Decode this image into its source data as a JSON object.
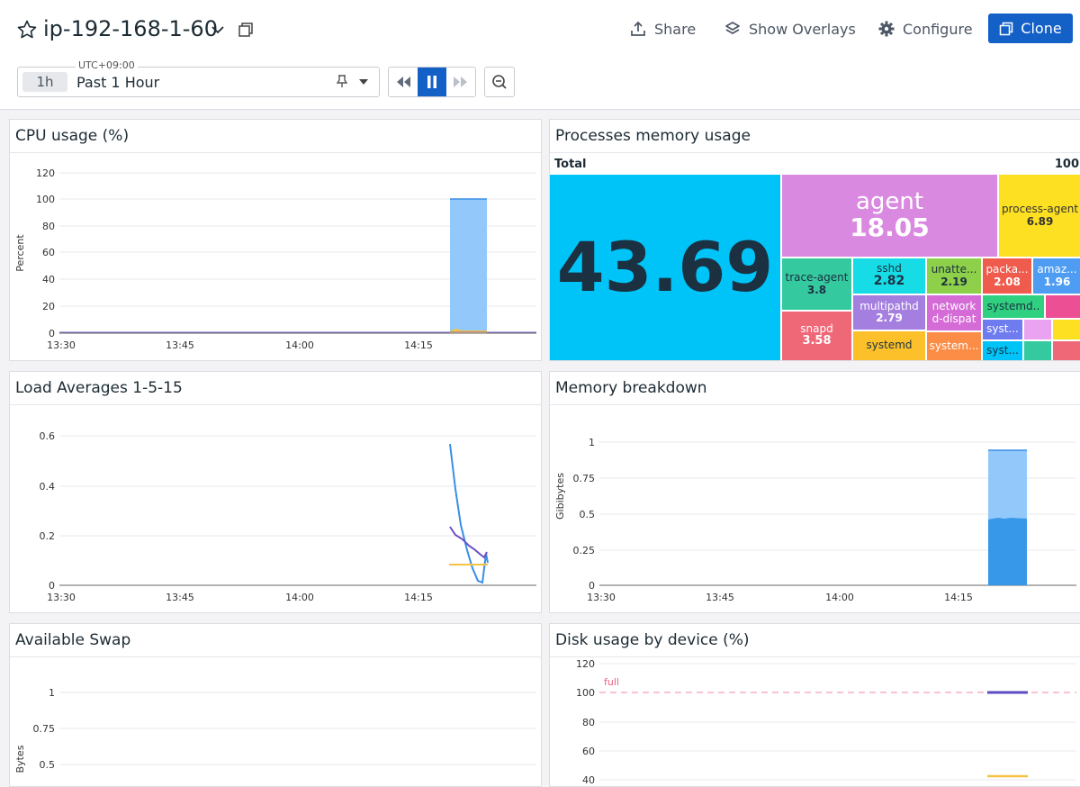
{
  "header": {
    "host": "ip-192-168-1-60",
    "share_label": "Share",
    "overlays_label": "Show Overlays",
    "configure_label": "Configure",
    "clone_label": "Clone"
  },
  "timeframe": {
    "timezone": "UTC+09:00",
    "short": "1h",
    "label": "Past 1 Hour"
  },
  "time_axis": [
    "13:30",
    "13:45",
    "14:00",
    "14:15"
  ],
  "cpu": {
    "title": "CPU usage (%)",
    "ylabel": "Percent",
    "yticks": [
      "120",
      "100",
      "80",
      "60",
      "40",
      "20",
      "0"
    ]
  },
  "load": {
    "title": "Load Averages 1-5-15",
    "yticks": [
      "0.6",
      "0.4",
      "0.2",
      "0"
    ]
  },
  "memory": {
    "title": "Memory breakdown",
    "ylabel": "Gibibytes",
    "yticks": [
      "1",
      "0.75",
      "0.5",
      "0.25",
      "0"
    ]
  },
  "swap": {
    "title": "Available Swap",
    "ylabel": "Bytes",
    "yticks": [
      "1",
      "0.75",
      "0.5"
    ]
  },
  "disk": {
    "title": "Disk usage by device (%)",
    "marker": "full",
    "yticks": [
      "120",
      "100",
      "80",
      "60",
      "40"
    ]
  },
  "processes": {
    "title": "Processes memory usage",
    "total_label": "Total",
    "total_value": "100",
    "big_value": "43.69",
    "items": [
      {
        "name": "agent",
        "value": "18.05"
      },
      {
        "name": "process-agent",
        "value": "6.89"
      },
      {
        "name": "trace-agent",
        "value": "3.8"
      },
      {
        "name": "sshd",
        "value": "2.82"
      },
      {
        "name": "unatte...",
        "value": "2.19"
      },
      {
        "name": "packa...",
        "value": "2.08"
      },
      {
        "name": "amaz...",
        "value": "1.96"
      },
      {
        "name": "multipathd",
        "value": "2.79"
      },
      {
        "name": "network d-dispat",
        "value": ""
      },
      {
        "name": "systemd..",
        "value": ""
      },
      {
        "name": "snapd",
        "value": "3.58"
      },
      {
        "name": "systemd",
        "value": ""
      },
      {
        "name": "system...",
        "value": ""
      },
      {
        "name": "syst...",
        "value": ""
      },
      {
        "name": "syst...",
        "value": ""
      }
    ]
  },
  "chart_data": [
    {
      "type": "area",
      "title": "CPU usage (%)",
      "ylabel": "Percent",
      "ylim": [
        0,
        120
      ],
      "series": [
        {
          "values": [
            100,
            100
          ]
        },
        {
          "values": [
            2,
            2
          ]
        }
      ]
    },
    {
      "type": "line",
      "title": "Load Averages 1-5-15",
      "ylim": [
        0,
        0.6
      ],
      "series": [
        {
          "values": [
            0.56,
            0.38,
            0.2,
            0.1,
            0.05,
            0.02,
            0.01,
            0.13
          ]
        },
        {
          "values": [
            0.24,
            0.2,
            0.18,
            0.16,
            0.14,
            0.12,
            0.12,
            0.12
          ]
        },
        {
          "values": [
            0.08,
            0.08,
            0.08,
            0.08,
            0.08
          ]
        }
      ]
    },
    {
      "type": "bar",
      "title": "Memory breakdown",
      "ylabel": "Gibibytes",
      "ylim": [
        0,
        1
      ],
      "series": [
        {
          "values": [
            0.46
          ]
        },
        {
          "values": [
            0.94
          ]
        }
      ]
    },
    {
      "type": "line",
      "title": "Disk usage by device (%)",
      "ylim": [
        40,
        120
      ],
      "series": [
        {
          "values": [
            100,
            100
          ]
        },
        {
          "values": [
            43,
            43
          ]
        }
      ]
    }
  ]
}
